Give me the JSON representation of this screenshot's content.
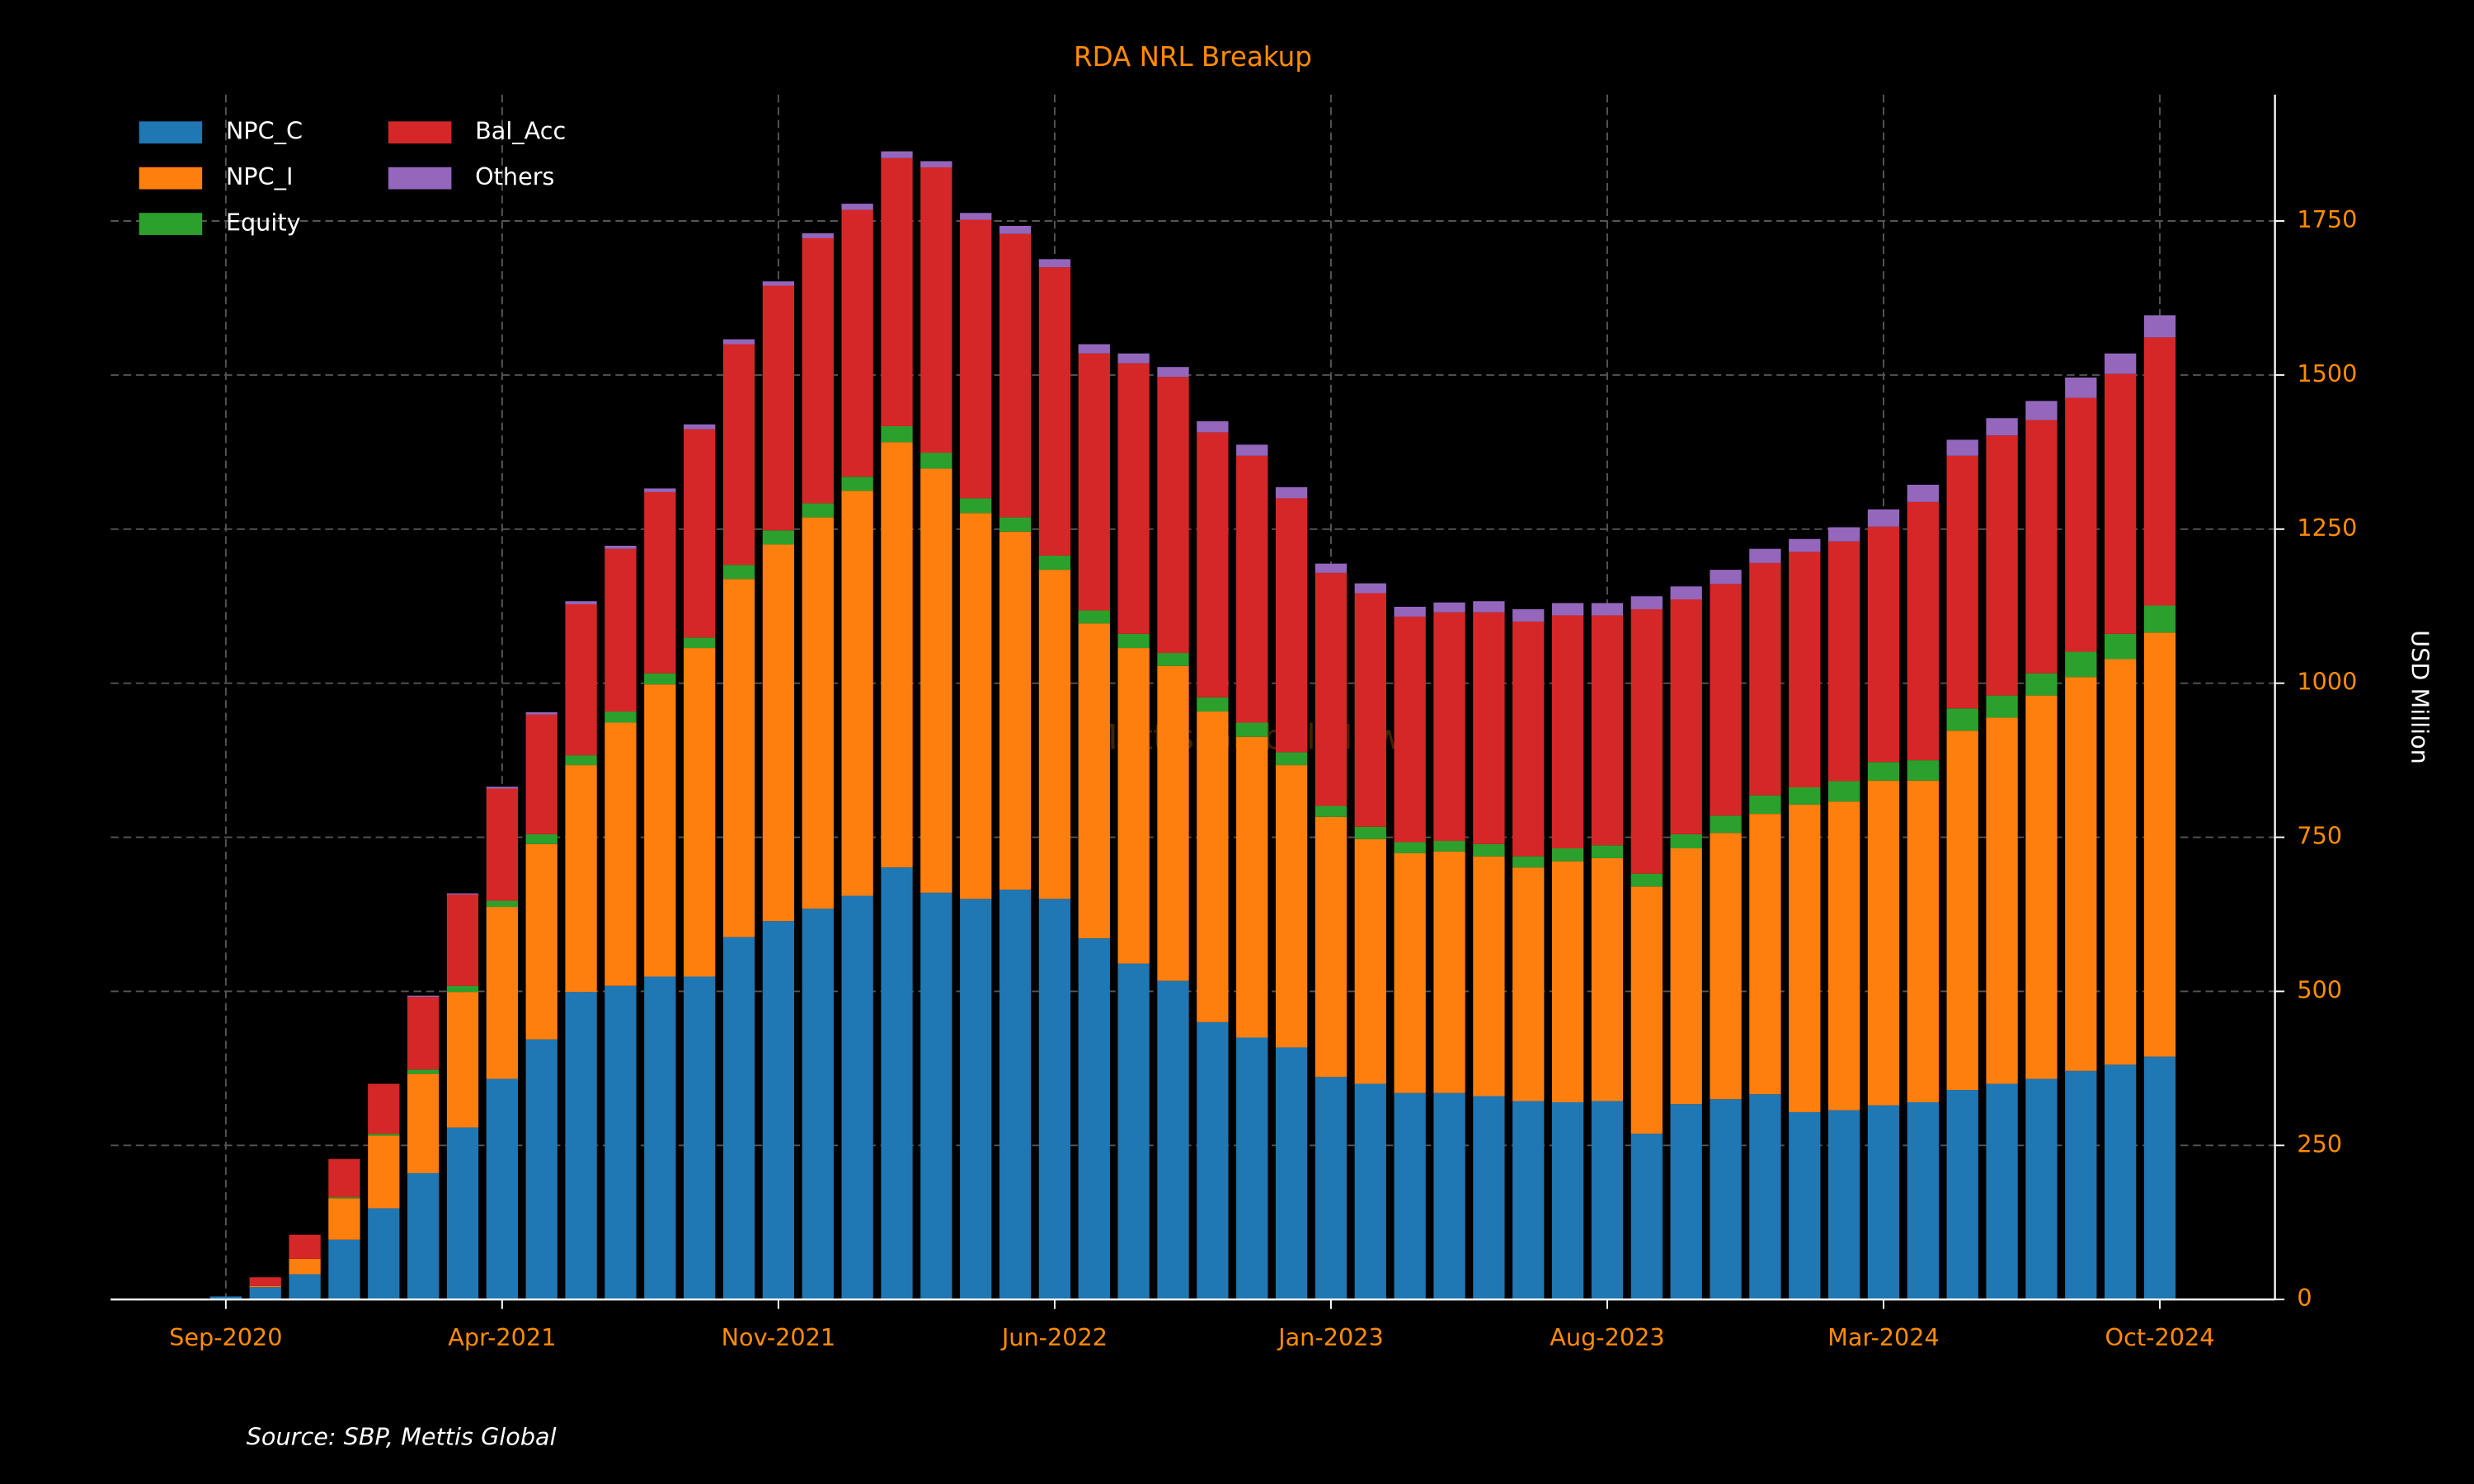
{
  "chart_data": {
    "type": "stacked_bar",
    "title": "RDA NRL Breakup",
    "y_label": "USD Million",
    "source": "Source: SBP, Mettis Global",
    "watermark": "Mettis Global News",
    "categories": [
      "Sep-2020",
      null,
      null,
      null,
      null,
      null,
      null,
      "Apr-2021",
      null,
      null,
      null,
      null,
      null,
      null,
      "Nov-2021",
      null,
      null,
      null,
      null,
      null,
      null,
      "Jun-2022",
      null,
      null,
      null,
      null,
      null,
      null,
      "Jan-2023",
      null,
      null,
      null,
      null,
      null,
      null,
      "Aug-2023",
      null,
      null,
      null,
      null,
      null,
      null,
      "Mar-2024",
      null,
      null,
      null,
      null,
      null,
      null,
      "Oct-2024"
    ],
    "series": [
      {
        "name": "NPC_C",
        "color": "#1f77b4",
        "values": [
          5,
          20,
          41,
          97,
          148,
          205,
          279,
          358,
          422,
          499,
          509,
          524,
          524,
          588,
          614,
          634,
          655,
          701,
          660,
          650,
          665,
          650,
          586,
          545,
          517,
          450,
          425,
          409,
          361,
          350,
          335,
          335,
          330,
          322,
          320,
          322,
          269,
          317,
          325,
          333,
          304,
          307,
          315,
          320,
          340,
          350,
          358,
          371,
          381,
          394
        ]
      },
      {
        "name": "NPC_I",
        "color": "#ff7f0e",
        "values": [
          0,
          2,
          25,
          67,
          118,
          161,
          220,
          279,
          317,
          368,
          427,
          474,
          533,
          581,
          611,
          635,
          657,
          690,
          688,
          626,
          581,
          534,
          511,
          512,
          511,
          504,
          488,
          458,
          422,
          397,
          389,
          392,
          389,
          379,
          391,
          394,
          401,
          415,
          432,
          455,
          499,
          501,
          527,
          522,
          583,
          594,
          622,
          639,
          658,
          688
        ]
      },
      {
        "name": "Equity",
        "color": "#2ca02c",
        "values": [
          0,
          0,
          0,
          2,
          3,
          7,
          10,
          10,
          16,
          16,
          18,
          18,
          17,
          23,
          23,
          23,
          23,
          26,
          26,
          24,
          23,
          23,
          21,
          23,
          21,
          23,
          23,
          21,
          18,
          20,
          18,
          17,
          20,
          18,
          21,
          21,
          21,
          23,
          28,
          30,
          28,
          33,
          30,
          33,
          36,
          36,
          36,
          41,
          41,
          44
        ]
      },
      {
        "name": "Bal_Acc",
        "color": "#d62728",
        "values": [
          0,
          14,
          39,
          62,
          81,
          118,
          148,
          182,
          194,
          245,
          264,
          294,
          338,
          358,
          397,
          430,
          433,
          435,
          463,
          452,
          460,
          468,
          417,
          439,
          448,
          430,
          433,
          412,
          378,
          379,
          366,
          371,
          376,
          381,
          378,
          373,
          429,
          381,
          376,
          377,
          382,
          389,
          382,
          419,
          410,
          422,
          411,
          412,
          422,
          435
        ]
      },
      {
        "name": "Others",
        "color": "#9467bd",
        "values": [
          0,
          0,
          0,
          0,
          0,
          2,
          2,
          3,
          4,
          5,
          5,
          6,
          8,
          8,
          7,
          8,
          10,
          11,
          10,
          11,
          13,
          13,
          15,
          16,
          16,
          18,
          18,
          18,
          15,
          16,
          16,
          16,
          18,
          20,
          20,
          20,
          21,
          21,
          23,
          23,
          21,
          23,
          28,
          28,
          26,
          28,
          31,
          33,
          33,
          36
        ]
      }
    ],
    "ylim": [
      0,
      1955
    ],
    "yticks": [
      0,
      250,
      500,
      750,
      1000,
      1250,
      1500,
      1750
    ],
    "grid": true,
    "legend": "upper left"
  }
}
